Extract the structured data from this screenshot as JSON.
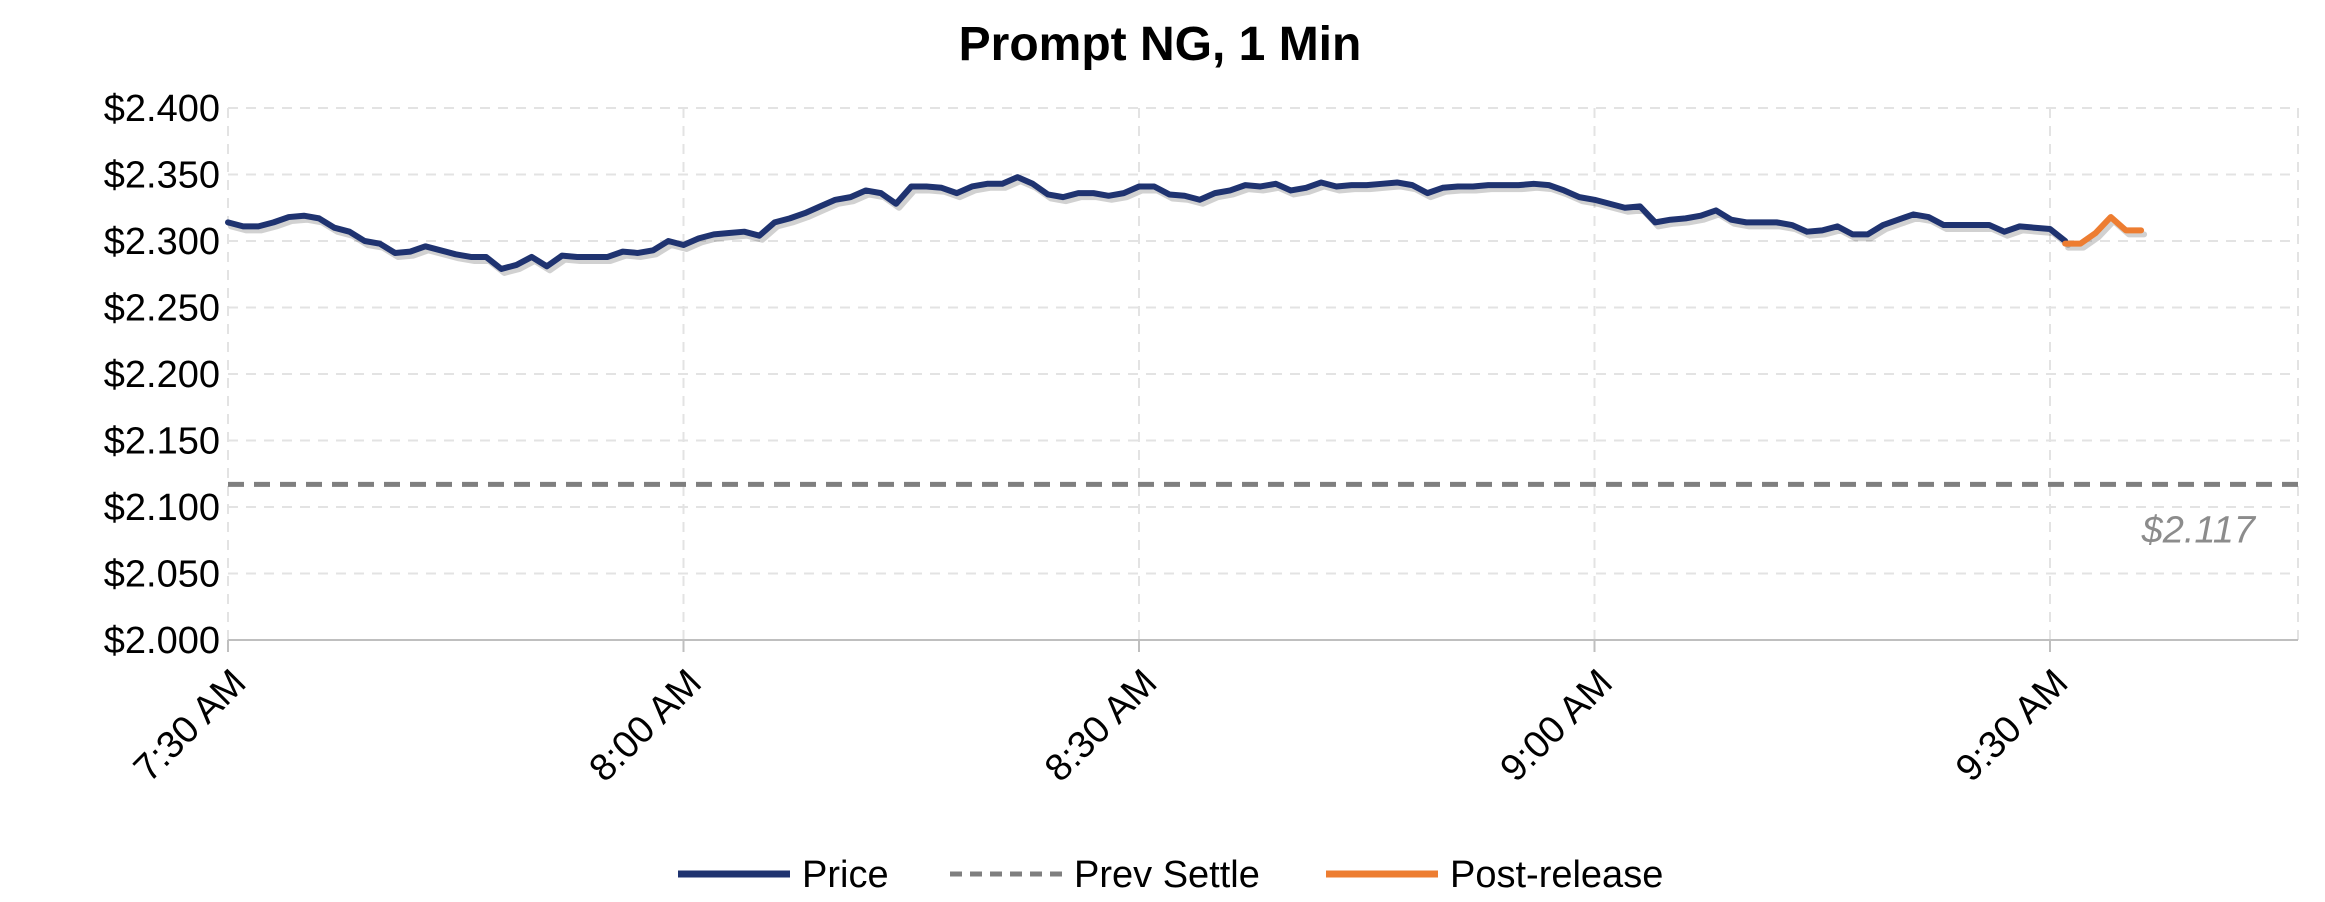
{
  "chart_data": {
    "type": "line",
    "title": "Prompt NG, 1 Min",
    "xlabel": "",
    "ylabel": "",
    "ylim": [
      2.0,
      2.4
    ],
    "yticks": [
      2.0,
      2.05,
      2.1,
      2.15,
      2.2,
      2.25,
      2.3,
      2.35,
      2.4
    ],
    "ytick_labels": [
      "$2.000",
      "$2.050",
      "$2.100",
      "$2.150",
      "$2.200",
      "$2.250",
      "$2.300",
      "$2.350",
      "$2.400"
    ],
    "x_ticks": [
      "7:30 AM",
      "8:00 AM",
      "8:30 AM",
      "9:00 AM",
      "9:30 AM"
    ],
    "x_start": "7:30 AM",
    "x_end": "9:46 AM",
    "grid": true,
    "legend_position": "bottom",
    "series": [
      {
        "name": "Price",
        "color": "#1f3370",
        "x": [
          "7:30 AM",
          "7:31 AM",
          "7:32 AM",
          "7:33 AM",
          "7:34 AM",
          "7:35 AM",
          "7:36 AM",
          "7:37 AM",
          "7:38 AM",
          "7:39 AM",
          "7:40 AM",
          "7:41 AM",
          "7:42 AM",
          "7:43 AM",
          "7:44 AM",
          "7:45 AM",
          "7:46 AM",
          "7:47 AM",
          "7:48 AM",
          "7:49 AM",
          "7:50 AM",
          "7:51 AM",
          "7:52 AM",
          "7:53 AM",
          "7:54 AM",
          "7:55 AM",
          "7:56 AM",
          "7:57 AM",
          "7:58 AM",
          "7:59 AM",
          "8:00 AM",
          "8:01 AM",
          "8:02 AM",
          "8:03 AM",
          "8:04 AM",
          "8:05 AM",
          "8:06 AM",
          "8:07 AM",
          "8:08 AM",
          "8:09 AM",
          "8:10 AM",
          "8:11 AM",
          "8:12 AM",
          "8:13 AM",
          "8:14 AM",
          "8:15 AM",
          "8:16 AM",
          "8:17 AM",
          "8:18 AM",
          "8:19 AM",
          "8:20 AM",
          "8:21 AM",
          "8:22 AM",
          "8:23 AM",
          "8:24 AM",
          "8:25 AM",
          "8:26 AM",
          "8:27 AM",
          "8:28 AM",
          "8:29 AM",
          "8:30 AM",
          "8:31 AM",
          "8:32 AM",
          "8:33 AM",
          "8:34 AM",
          "8:35 AM",
          "8:36 AM",
          "8:37 AM",
          "8:38 AM",
          "8:39 AM",
          "8:40 AM",
          "8:41 AM",
          "8:42 AM",
          "8:43 AM",
          "8:44 AM",
          "8:45 AM",
          "8:46 AM",
          "8:47 AM",
          "8:48 AM",
          "8:49 AM",
          "8:50 AM",
          "8:51 AM",
          "8:52 AM",
          "8:53 AM",
          "8:54 AM",
          "8:55 AM",
          "8:56 AM",
          "8:57 AM",
          "8:58 AM",
          "8:59 AM",
          "9:00 AM",
          "9:01 AM",
          "9:02 AM",
          "9:03 AM",
          "9:04 AM",
          "9:05 AM",
          "9:06 AM",
          "9:07 AM",
          "9:08 AM",
          "9:09 AM",
          "9:10 AM",
          "9:11 AM",
          "9:12 AM",
          "9:13 AM",
          "9:14 AM",
          "9:15 AM",
          "9:16 AM",
          "9:17 AM",
          "9:18 AM",
          "9:19 AM",
          "9:20 AM",
          "9:21 AM",
          "9:22 AM",
          "9:23 AM",
          "9:24 AM",
          "9:25 AM",
          "9:26 AM",
          "9:27 AM",
          "9:28 AM",
          "9:29 AM",
          "9:30 AM",
          "9:31 AM"
        ],
        "values": [
          2.314,
          2.311,
          2.311,
          2.314,
          2.318,
          2.319,
          2.317,
          2.31,
          2.307,
          2.3,
          2.298,
          2.291,
          2.292,
          2.296,
          2.293,
          2.29,
          2.288,
          2.288,
          2.279,
          2.282,
          2.288,
          2.281,
          2.289,
          2.288,
          2.288,
          2.288,
          2.292,
          2.291,
          2.293,
          2.3,
          2.297,
          2.302,
          2.305,
          2.306,
          2.307,
          2.304,
          2.314,
          2.317,
          2.321,
          2.326,
          2.331,
          2.333,
          2.338,
          2.336,
          2.328,
          2.341,
          2.341,
          2.34,
          2.336,
          2.341,
          2.343,
          2.343,
          2.348,
          2.343,
          2.335,
          2.333,
          2.336,
          2.336,
          2.334,
          2.336,
          2.341,
          2.341,
          2.335,
          2.334,
          2.331,
          2.336,
          2.338,
          2.342,
          2.341,
          2.343,
          2.338,
          2.34,
          2.344,
          2.341,
          2.342,
          2.342,
          2.343,
          2.344,
          2.342,
          2.336,
          2.34,
          2.341,
          2.341,
          2.342,
          2.342,
          2.342,
          2.343,
          2.342,
          2.338,
          2.333,
          2.331,
          2.328,
          2.325,
          2.326,
          2.314,
          2.316,
          2.317,
          2.319,
          2.323,
          2.316,
          2.314,
          2.314,
          2.314,
          2.312,
          2.307,
          2.308,
          2.311,
          2.305,
          2.305,
          2.312,
          2.316,
          2.32,
          2.318,
          2.312,
          2.312,
          2.312,
          2.312,
          2.307,
          2.311,
          2.31,
          2.309,
          2.3
        ]
      },
      {
        "name": "Prev Settle",
        "color": "#7f7f7f",
        "values": [
          2.117
        ],
        "label": "$2.117"
      },
      {
        "name": "Post-release",
        "color": "#ed7d31",
        "x": [
          "9:31 AM",
          "9:32 AM",
          "9:33 AM",
          "9:34 AM",
          "9:35 AM",
          "9:36 AM"
        ],
        "values": [
          2.298,
          2.298,
          2.306,
          2.318,
          2.308,
          2.308
        ]
      }
    ]
  }
}
